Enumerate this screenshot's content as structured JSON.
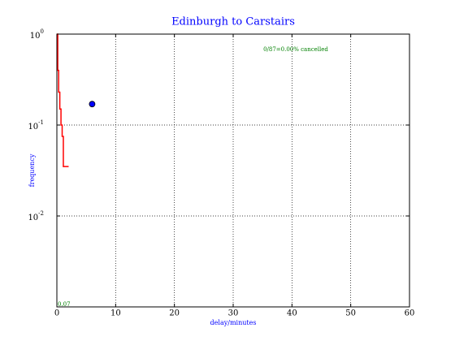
{
  "chart_data": {
    "type": "line",
    "title": "Edinburgh to Carstairs",
    "xlabel": "delay/minutes",
    "ylabel": "frequency",
    "annotations": [
      {
        "text": "0/87=0.00% cancelled",
        "color": "#008000"
      },
      {
        "text": "0.07",
        "color": "#008000"
      }
    ],
    "xlim": [
      0,
      60
    ],
    "xticks": [
      0,
      10,
      20,
      30,
      40,
      50,
      60
    ],
    "ylim": [
      0.001,
      1
    ],
    "yscale": "log",
    "yticks": [
      {
        "value": 1,
        "label": "10",
        "exponent": "0"
      },
      {
        "value": 0.1,
        "label": "10",
        "exponent": "-1"
      },
      {
        "value": 0.01,
        "label": "10",
        "exponent": "-2"
      }
    ],
    "grid": true,
    "series": [
      {
        "kind": "step",
        "color": "#ff0000",
        "x": [
          0,
          0.15,
          0.3,
          0.5,
          0.7,
          0.9,
          1.1,
          2.0
        ],
        "values": [
          1,
          0.4,
          0.23,
          0.15,
          0.1,
          0.075,
          0.035,
          0.035
        ]
      },
      {
        "kind": "marker",
        "color": "#0000ff",
        "x": [
          6
        ],
        "values": [
          0.17
        ]
      },
      {
        "kind": "line",
        "color": "#008000",
        "x": [
          0,
          0
        ],
        "values": [
          0.001,
          1
        ]
      }
    ]
  }
}
